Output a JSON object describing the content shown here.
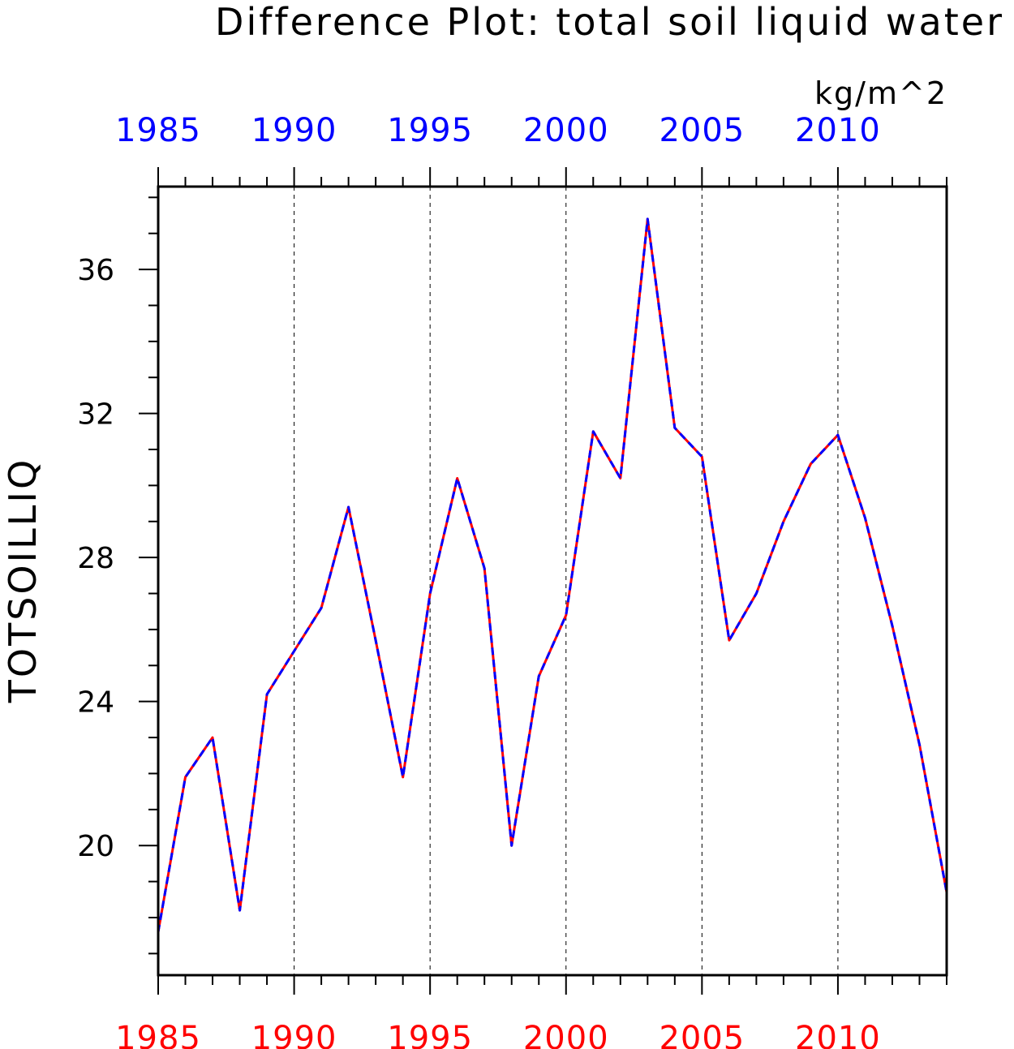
{
  "chart_data": {
    "type": "line",
    "title": "Difference Plot: total soil liquid water",
    "units": "kg/m^2",
    "ylabel": "TOTSOILLIQ",
    "xlabel": "",
    "xlim": [
      1985,
      2014
    ],
    "ylim": [
      16.4,
      38.3
    ],
    "x_ticks": [
      1985,
      1990,
      1995,
      2000,
      2005,
      2010
    ],
    "x_tick_labels_top": [
      "1985",
      "1990",
      "1995",
      "2000",
      "2005",
      "2010"
    ],
    "x_tick_labels_bottom": [
      "1985",
      "1990",
      "1995",
      "2000",
      "2005",
      "2010"
    ],
    "y_ticks": [
      20,
      24,
      28,
      32,
      36
    ],
    "y_tick_labels": [
      "20",
      "24",
      "28",
      "32",
      "36"
    ],
    "vertical_grid": true,
    "grid_style": "dashed",
    "top_axis_color": "#0000ff",
    "bottom_axis_color": "#ff0000",
    "x": [
      1985,
      1986,
      1987,
      1988,
      1989,
      1990,
      1991,
      1992,
      1993,
      1994,
      1995,
      1996,
      1997,
      1998,
      1999,
      2000,
      2001,
      2002,
      2003,
      2004,
      2005,
      2006,
      2007,
      2008,
      2009,
      2010,
      2011,
      2012,
      2013,
      2014
    ],
    "series": [
      {
        "color": "#ff0000",
        "style": "solid",
        "values": [
          17.6,
          21.9,
          23.0,
          18.2,
          24.2,
          25.4,
          26.6,
          29.4,
          25.7,
          21.9,
          27.0,
          30.2,
          27.7,
          20.0,
          24.7,
          26.4,
          31.5,
          30.2,
          37.4,
          31.6,
          30.8,
          25.7,
          27.0,
          29.0,
          30.6,
          31.4,
          29.1,
          26.1,
          22.8,
          18.7
        ]
      },
      {
        "color": "#0000ff",
        "style": "dashed",
        "values": [
          17.6,
          21.9,
          23.0,
          18.2,
          24.2,
          25.4,
          26.6,
          29.4,
          25.7,
          21.9,
          27.0,
          30.2,
          27.7,
          20.0,
          24.7,
          26.4,
          31.5,
          30.2,
          37.4,
          31.6,
          30.8,
          25.7,
          27.0,
          29.0,
          30.6,
          31.4,
          29.1,
          26.1,
          22.8,
          18.7
        ]
      }
    ]
  }
}
